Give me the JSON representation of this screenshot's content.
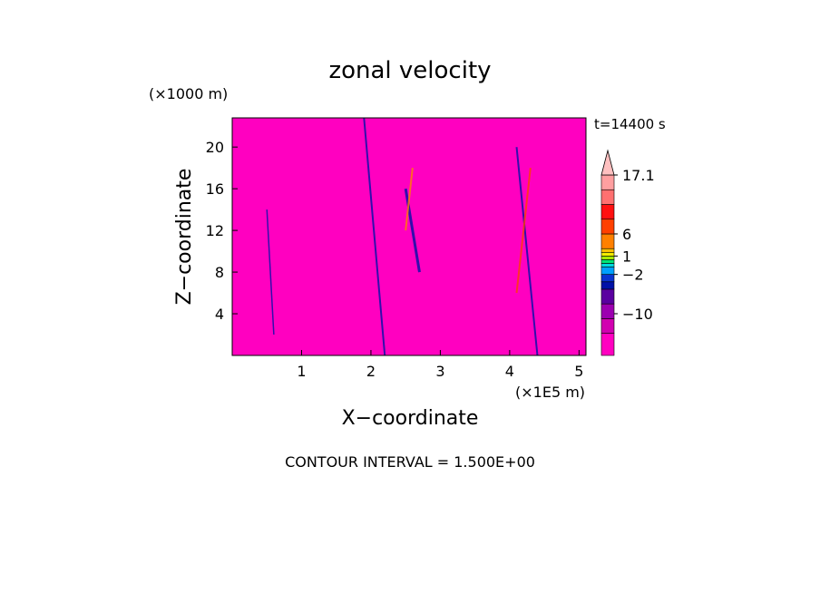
{
  "chart_data": {
    "type": "heatmap",
    "title": "zonal velocity",
    "xlabel": "X−coordinate",
    "ylabel": "Z−coordinate",
    "x_unit": "(×1E5 m)",
    "y_unit": "(×1000 m)",
    "time_label": "t=14400 s",
    "footer": "CONTOUR INTERVAL = 1.500E+00",
    "xlim": [
      0,
      5.1
    ],
    "ylim": [
      0,
      22.8
    ],
    "x_ticks": [
      1,
      2,
      3,
      4,
      5
    ],
    "x_tick_labels": [
      "1",
      "2",
      "3",
      "4",
      "5"
    ],
    "y_ticks": [
      4,
      8,
      12,
      16,
      20
    ],
    "y_tick_labels": [
      "4",
      "8",
      "12",
      "16",
      "20"
    ],
    "contour_interval": 1.5,
    "field": "zonal velocity anomaly field (turbulent, values roughly -17 to 17.1)",
    "colorbar": {
      "levels": [
        {
          "min": -17.1,
          "max": -14.0,
          "color": "#ff00c0"
        },
        {
          "min": -14.0,
          "max": -11.0,
          "color": "#d100b0"
        },
        {
          "min": -11.0,
          "max": -8.0,
          "color": "#9c00b0"
        },
        {
          "min": -8.0,
          "max": -5.0,
          "color": "#5a00a0"
        },
        {
          "min": -5.0,
          "max": -3.5,
          "color": "#0012a8"
        },
        {
          "min": -3.5,
          "max": -2.0,
          "color": "#0a34d0"
        },
        {
          "min": -2.0,
          "max": -0.5,
          "color": "#00a0ff"
        },
        {
          "min": -0.5,
          "max": 0.0,
          "color": "#00d9e0"
        },
        {
          "min": 0.0,
          "max": 0.5,
          "color": "#00e676"
        },
        {
          "min": 0.5,
          "max": 1.0,
          "color": "#a8e800"
        },
        {
          "min": 1.0,
          "max": 1.5,
          "color": "#f5ec00"
        },
        {
          "min": 1.5,
          "max": 2.5,
          "color": "#ffc000"
        },
        {
          "min": 2.5,
          "max": 6.0,
          "color": "#ff8000"
        },
        {
          "min": 6.0,
          "max": 9.0,
          "color": "#ff4000"
        },
        {
          "min": 9.0,
          "max": 12.0,
          "color": "#ff1010"
        },
        {
          "min": 12.0,
          "max": 15.0,
          "color": "#ff7070"
        },
        {
          "min": 15.0,
          "max": 17.1,
          "color": "#ff9fa0"
        }
      ],
      "overflow_color": "#ffc0c0",
      "labels": [
        "17.1",
        "6",
        "1",
        "−2",
        "−10"
      ],
      "label_values": [
        17.1,
        6,
        1,
        -2,
        -10
      ]
    }
  }
}
